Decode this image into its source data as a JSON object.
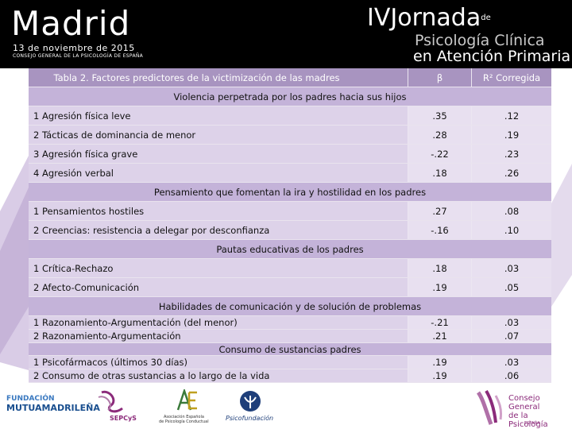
{
  "header": {
    "title": "Madrid",
    "date": "13 de noviembre de 2015",
    "org": "CONSEJO GENERAL DE LA PSICOLOGÍA DE ESPAÑA",
    "event_num": "IV",
    "event_word": "Jornada",
    "event_de": "de",
    "event_line2": "Psicología Clínica",
    "event_line3": "en Atención Primaria"
  },
  "table": {
    "caption": "Tabla 2. Factores predictores de la victimización de las madres",
    "col_beta": "β",
    "col_r2": "R² Corregida",
    "sections": [
      {
        "title": "Violencia perpetrada por los padres hacia sus hijos",
        "rows": [
          {
            "label": "1 Agresión física leve",
            "beta": ".35",
            "r2": ".12"
          },
          {
            "label": "2 Tácticas de dominancia de menor",
            "beta": ".28",
            "r2": ".19"
          },
          {
            "label": "3 Agresión física grave",
            "beta": "-.22",
            "r2": ".23"
          },
          {
            "label": "4 Agresión verbal",
            "beta": ".18",
            "r2": ".26"
          }
        ]
      },
      {
        "title": "Pensamiento que fomentan la ira y hostilidad en los padres",
        "rows": [
          {
            "label": "1 Pensamientos hostiles",
            "beta": ".27",
            "r2": ".08"
          },
          {
            "label": "2 Creencias: resistencia a delegar por desconfianza",
            "beta": "-.16",
            "r2": ".10"
          }
        ]
      },
      {
        "title": "Pautas educativas de los padres",
        "rows": [
          {
            "label": "1 Crítica-Rechazo",
            "beta": ".18",
            "r2": ".03"
          },
          {
            "label": "2 Afecto-Comunicación",
            "beta": ".19",
            "r2": ".05"
          }
        ]
      },
      {
        "title": "Habilidades de comunicación y de solución de problemas",
        "rows": [
          {
            "label": "1 Razonamiento-Argumentación (del menor)",
            "beta": "-.21",
            "r2": ".03"
          },
          {
            "label": "2 Razonamiento-Argumentación",
            "beta": ".21",
            "r2": ".07"
          }
        ]
      },
      {
        "title": "Consumo de sustancias padres",
        "rows": [
          {
            "label": "1 Psicofármacos (últimos 30 días)",
            "beta": ".19",
            "r2": ".03"
          },
          {
            "label": "2 Consumo de otras sustancias a lo largo de la vida",
            "beta": ".19",
            "r2": ".06"
          }
        ]
      }
    ]
  },
  "footer": {
    "fundacion_l1": "FUNDACIÓN",
    "fundacion_l2": "MUTUAMADRILEÑA",
    "sepcys": "SEPCyS",
    "aepc_l1": "Asociación Española",
    "aepc_l2": "de Psicología Conductual",
    "psicofundacion": "Psicofundación",
    "cgp_l1": "Consejo General",
    "cgp_l2": "de la Psicología",
    "cgp_l3": "ESPAÑA"
  },
  "colors": {
    "header_bg": "#000000",
    "table_header": "#a894c0",
    "section_row": "#c4b3d9",
    "data_row": "#ddd2e9",
    "accent": "#8b2a7a"
  }
}
